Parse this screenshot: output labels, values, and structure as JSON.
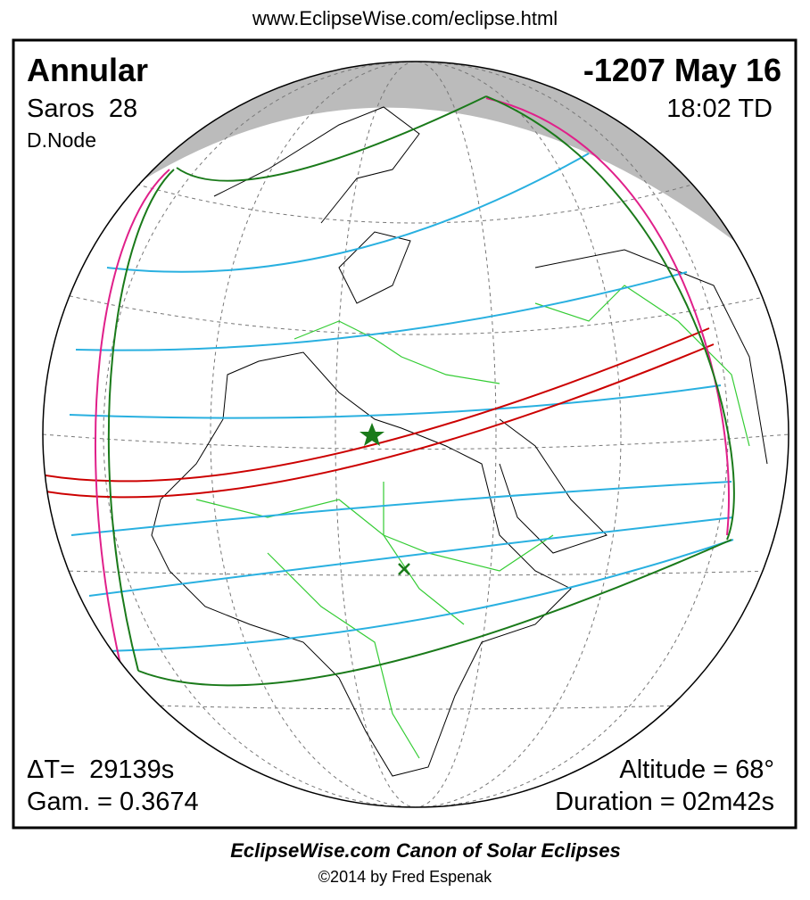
{
  "header": {
    "url": "www.EclipseWise.com/eclipse.html"
  },
  "panel": {
    "eclipse_type": "Annular",
    "date": "-1207 May 16",
    "saros": "Saros  28",
    "time": "18:02 TD",
    "node": "D.Node",
    "delta_t": "ΔT=  29139s",
    "gamma": "Gam. = 0.3674",
    "altitude": "Altitude = 68°",
    "duration": "Duration = 02m42s"
  },
  "footer": {
    "title": "EclipseWise.com Canon of Solar Eclipses",
    "copyright": "©2014 by Fred Espenak"
  }
}
